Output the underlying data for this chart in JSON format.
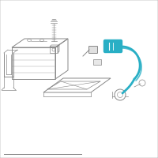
{
  "bg_color": "#ffffff",
  "border_color": "#c8c8c8",
  "line_color": "#888888",
  "highlight_color": "#29afc5",
  "figure_size": [
    2.0,
    2.0
  ],
  "dpi": 100
}
